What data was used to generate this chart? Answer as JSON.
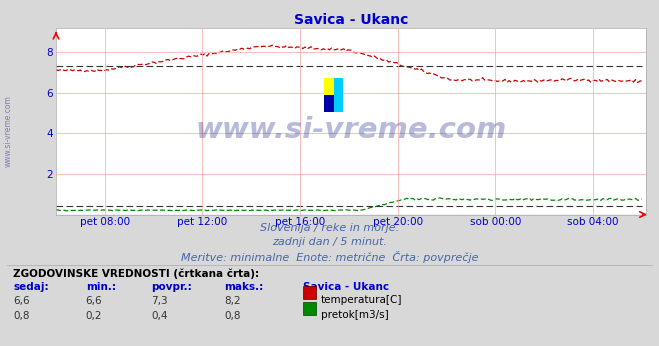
{
  "title": "Savica - Ukanc",
  "title_color": "#0000cc",
  "bg_color": "#d8d8d8",
  "plot_bg_color": "#ffffff",
  "grid_color": "#ffaaaa",
  "axis_label_color": "#0000cc",
  "text_color": "#4466aa",
  "xlabel_ticks": [
    "pet 08:00",
    "pet 12:00",
    "pet 16:00",
    "pet 20:00",
    "sob 00:00",
    "sob 04:00"
  ],
  "ylim": [
    0,
    9.2
  ],
  "yticks": [
    2,
    4,
    6,
    8
  ],
  "temp_color": "#cc0000",
  "flow_color": "#008800",
  "watermark": "www.si-vreme.com",
  "watermark_color": "#1a1a8c",
  "subtitle1": "Slovenija / reke in morje.",
  "subtitle2": "zadnji dan / 5 minut.",
  "subtitle3": "Meritve: minimalne  Enote: metrične  Črta: povprečje",
  "legend_title": "ZGODOVINSKE VREDNOSTI (črtkana črta):",
  "legend_headers": [
    "sedaj:",
    "min.:",
    "povpr.:",
    "maks.:",
    "Savica - Ukanc"
  ],
  "legend_row1": [
    "6,6",
    "6,6",
    "7,3",
    "8,2",
    "temperatura[C]"
  ],
  "legend_row2": [
    "0,8",
    "0,2",
    "0,4",
    "0,8",
    "pretok[m3/s]"
  ],
  "temp_avg": 7.3,
  "flow_avg": 0.4,
  "n_points": 288
}
